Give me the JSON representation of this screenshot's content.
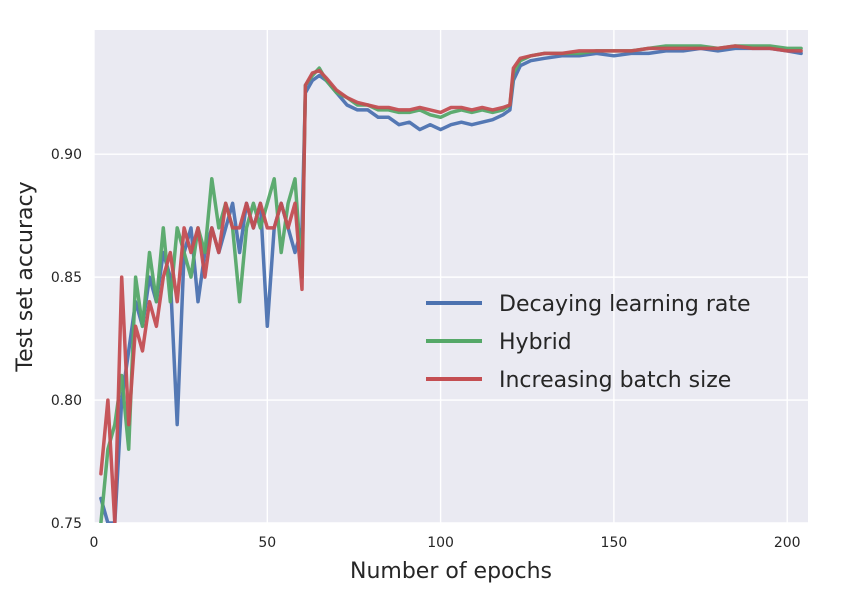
{
  "chart_data": {
    "type": "line",
    "title": "",
    "xlabel": "Number of epochs",
    "ylabel": "Test set accuracy",
    "xlim": [
      0,
      206
    ],
    "ylim": [
      0.75,
      0.9505
    ],
    "xticks": [
      0,
      50,
      100,
      150,
      200
    ],
    "xtick_labels": [
      "0",
      "50",
      "100",
      "150",
      "200"
    ],
    "yticks": [
      0.75,
      0.8,
      0.85,
      0.9
    ],
    "ytick_labels": [
      "0.75",
      "0.80",
      "0.85",
      "0.90"
    ],
    "grid": true,
    "background": "#EAEAF2",
    "legend": {
      "position": "center-right",
      "entries": [
        "Decaying learning rate",
        "Hybrid",
        "Increasing batch size"
      ]
    },
    "series": [
      {
        "name": "Decaying learning rate",
        "color": "#4C72B0",
        "x": [
          2,
          4,
          6,
          8,
          10,
          12,
          14,
          16,
          18,
          20,
          22,
          24,
          26,
          28,
          30,
          32,
          34,
          36,
          38,
          40,
          42,
          44,
          46,
          48,
          50,
          52,
          54,
          56,
          58,
          60,
          61,
          63,
          65,
          67,
          70,
          73,
          76,
          79,
          82,
          85,
          88,
          91,
          94,
          97,
          100,
          103,
          106,
          109,
          112,
          115,
          118,
          120,
          121,
          123,
          126,
          130,
          135,
          140,
          145,
          150,
          155,
          160,
          165,
          170,
          175,
          180,
          185,
          190,
          195,
          200,
          204
        ],
        "y": [
          0.76,
          0.75,
          0.75,
          0.8,
          0.82,
          0.84,
          0.83,
          0.85,
          0.84,
          0.86,
          0.85,
          0.79,
          0.86,
          0.87,
          0.84,
          0.86,
          0.87,
          0.86,
          0.87,
          0.88,
          0.86,
          0.88,
          0.87,
          0.88,
          0.83,
          0.87,
          0.88,
          0.87,
          0.86,
          0.87,
          0.925,
          0.93,
          0.932,
          0.93,
          0.925,
          0.92,
          0.918,
          0.918,
          0.915,
          0.915,
          0.912,
          0.913,
          0.91,
          0.912,
          0.91,
          0.912,
          0.913,
          0.912,
          0.913,
          0.914,
          0.916,
          0.918,
          0.93,
          0.936,
          0.938,
          0.939,
          0.94,
          0.94,
          0.941,
          0.94,
          0.941,
          0.941,
          0.942,
          0.942,
          0.943,
          0.942,
          0.943,
          0.943,
          0.943,
          0.942,
          0.941
        ]
      },
      {
        "name": "Hybrid",
        "color": "#55A868",
        "x": [
          2,
          4,
          6,
          8,
          10,
          12,
          14,
          16,
          18,
          20,
          22,
          24,
          26,
          28,
          30,
          32,
          34,
          36,
          38,
          40,
          42,
          44,
          46,
          48,
          50,
          52,
          54,
          56,
          58,
          60,
          61,
          63,
          65,
          67,
          70,
          73,
          76,
          79,
          82,
          85,
          88,
          91,
          94,
          97,
          100,
          103,
          106,
          109,
          112,
          115,
          118,
          120,
          121,
          123,
          126,
          130,
          135,
          140,
          145,
          150,
          155,
          160,
          165,
          170,
          175,
          180,
          185,
          190,
          195,
          200,
          204
        ],
        "y": [
          0.75,
          0.78,
          0.79,
          0.81,
          0.78,
          0.85,
          0.83,
          0.86,
          0.84,
          0.87,
          0.84,
          0.87,
          0.86,
          0.85,
          0.87,
          0.86,
          0.89,
          0.87,
          0.88,
          0.87,
          0.84,
          0.87,
          0.88,
          0.87,
          0.88,
          0.89,
          0.86,
          0.88,
          0.89,
          0.85,
          0.928,
          0.932,
          0.935,
          0.93,
          0.925,
          0.923,
          0.92,
          0.92,
          0.918,
          0.918,
          0.917,
          0.917,
          0.918,
          0.916,
          0.915,
          0.917,
          0.918,
          0.917,
          0.918,
          0.917,
          0.918,
          0.92,
          0.933,
          0.938,
          0.94,
          0.941,
          0.941,
          0.941,
          0.942,
          0.942,
          0.942,
          0.943,
          0.944,
          0.944,
          0.944,
          0.943,
          0.944,
          0.944,
          0.944,
          0.943,
          0.943
        ]
      },
      {
        "name": "Increasing batch size",
        "color": "#C44E52",
        "x": [
          2,
          4,
          6,
          8,
          10,
          12,
          14,
          16,
          18,
          20,
          22,
          24,
          26,
          28,
          30,
          32,
          34,
          36,
          38,
          40,
          42,
          44,
          46,
          48,
          50,
          52,
          54,
          56,
          58,
          60,
          61,
          63,
          65,
          67,
          70,
          73,
          76,
          79,
          82,
          85,
          88,
          91,
          94,
          97,
          100,
          103,
          106,
          109,
          112,
          115,
          118,
          120,
          121,
          123,
          126,
          130,
          135,
          140,
          145,
          150,
          155,
          160,
          165,
          170,
          175,
          180,
          185,
          190,
          195,
          200,
          204
        ],
        "y": [
          0.77,
          0.8,
          0.75,
          0.85,
          0.79,
          0.83,
          0.82,
          0.84,
          0.83,
          0.85,
          0.86,
          0.84,
          0.87,
          0.86,
          0.87,
          0.85,
          0.87,
          0.86,
          0.88,
          0.87,
          0.87,
          0.88,
          0.87,
          0.88,
          0.87,
          0.87,
          0.88,
          0.87,
          0.88,
          0.845,
          0.928,
          0.933,
          0.934,
          0.931,
          0.926,
          0.923,
          0.921,
          0.92,
          0.919,
          0.919,
          0.918,
          0.918,
          0.919,
          0.918,
          0.917,
          0.919,
          0.919,
          0.918,
          0.919,
          0.918,
          0.919,
          0.92,
          0.935,
          0.939,
          0.94,
          0.941,
          0.941,
          0.942,
          0.942,
          0.942,
          0.942,
          0.943,
          0.943,
          0.943,
          0.943,
          0.943,
          0.944,
          0.943,
          0.943,
          0.942,
          0.942
        ]
      }
    ]
  }
}
